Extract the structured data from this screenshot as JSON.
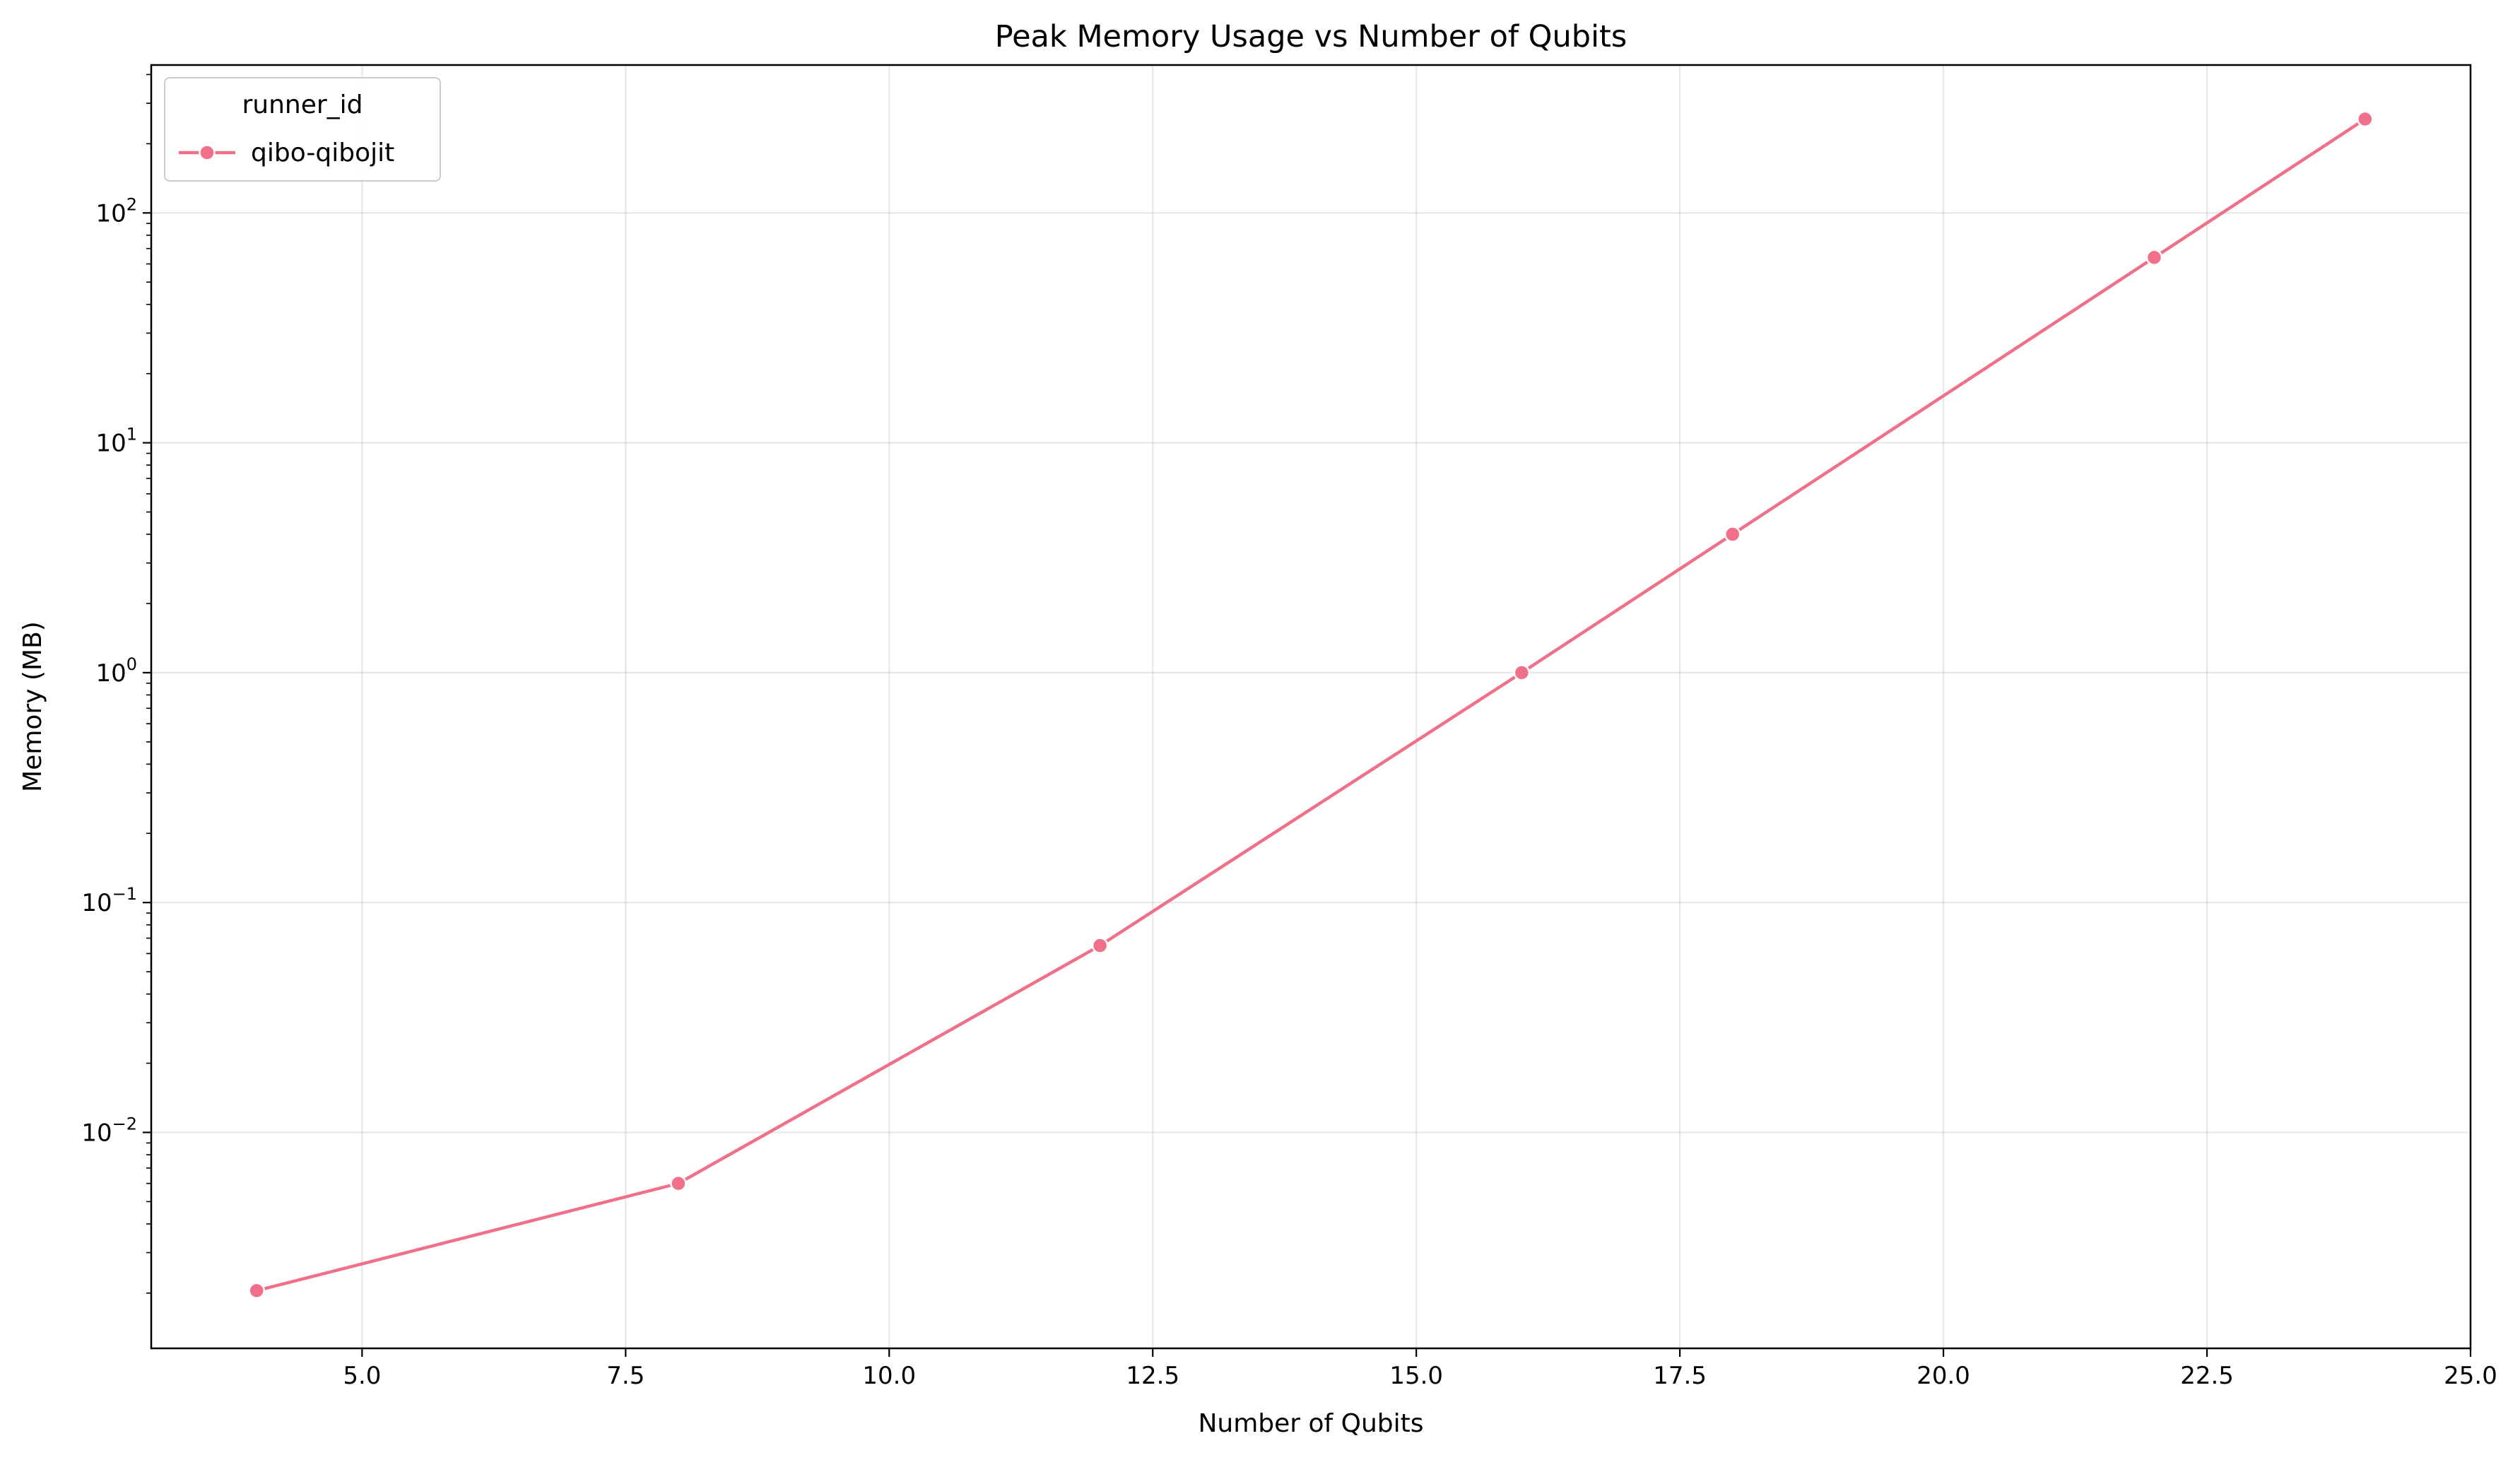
{
  "chart_data": {
    "type": "line",
    "title": "Peak Memory Usage vs Number of Qubits",
    "xlabel": "Number of Qubits",
    "ylabel": "Memory (MB)",
    "xlim": [
      3.0,
      25.0
    ],
    "ylim": [
      0.00115,
      440
    ],
    "yscale": "log",
    "grid": true,
    "legend": {
      "title": "runner_id",
      "placement": "top-left"
    },
    "xticks": [
      5.0,
      7.5,
      10.0,
      12.5,
      15.0,
      17.5,
      20.0,
      22.5,
      25.0
    ],
    "xtick_labels": [
      "5.0",
      "7.5",
      "10.0",
      "12.5",
      "15.0",
      "17.5",
      "20.0",
      "22.5",
      "25.0"
    ],
    "ytick_exponents": [
      -2,
      -1,
      0,
      1,
      2
    ],
    "ytick_base": "10",
    "series": [
      {
        "name": "qibo-qibojit",
        "color": "#f0708a",
        "x": [
          4,
          8,
          12,
          16,
          18,
          22,
          24
        ],
        "y": [
          0.00205,
          0.006,
          0.065,
          1.0,
          4.0,
          64.0,
          256.0
        ]
      }
    ]
  }
}
